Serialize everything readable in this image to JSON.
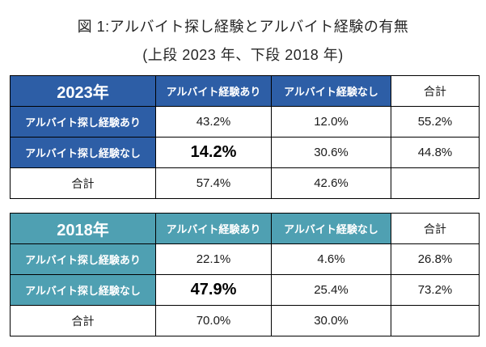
{
  "figure": {
    "title_line1": "図 1:アルバイト探し経験とアルバイト経験の有無",
    "title_line2": "(上段 2023 年、下段 2018 年)"
  },
  "colors": {
    "header_2023": "#2d5ea6",
    "header_2018": "#4fa0b2",
    "header_text": "#ffffff",
    "title_text": "#262626",
    "cell_text": "#1a1a1a",
    "border": "#000000"
  },
  "tables": [
    {
      "year_label": "2023年",
      "col_headers": [
        "アルバイト経験あり",
        "アルバイト経験なし",
        "合計"
      ],
      "rows": [
        {
          "label": "アルバイト探し経験あり",
          "values": [
            "43.2%",
            "12.0%",
            "55.2%"
          ]
        },
        {
          "label": "アルバイト探し経験なし",
          "values": [
            "14.2%",
            "30.6%",
            "44.8%"
          ]
        },
        {
          "label": "合計",
          "values": [
            "57.4%",
            "42.6%",
            ""
          ]
        }
      ]
    },
    {
      "year_label": "2018年",
      "col_headers": [
        "アルバイト経験あり",
        "アルバイト経験なし",
        "合計"
      ],
      "rows": [
        {
          "label": "アルバイト探し経験あり",
          "values": [
            "22.1%",
            "4.6%",
            "26.8%"
          ]
        },
        {
          "label": "アルバイト探し経験なし",
          "values": [
            "47.9%",
            "25.4%",
            "73.2%"
          ]
        },
        {
          "label": "合計",
          "values": [
            "70.0%",
            "30.0%",
            ""
          ]
        }
      ]
    }
  ],
  "chart_data": [
    {
      "type": "table",
      "title": "2023年",
      "columns": [
        "2023年",
        "アルバイト経験あり",
        "アルバイト経験なし",
        "合計"
      ],
      "rows": [
        [
          "アルバイト探し経験あり",
          "43.2%",
          "12.0%",
          "55.2%"
        ],
        [
          "アルバイト探し経験なし",
          "14.2%",
          "30.6%",
          "44.8%"
        ],
        [
          "合計",
          "57.4%",
          "42.6%",
          ""
        ]
      ],
      "emphasized_value": "14.2%",
      "header_color": "#2d5ea6"
    },
    {
      "type": "table",
      "title": "2018年",
      "columns": [
        "2018年",
        "アルバイト経験あり",
        "アルバイト経験なし",
        "合計"
      ],
      "rows": [
        [
          "アルバイト探し経験あり",
          "22.1%",
          "4.6%",
          "26.8%"
        ],
        [
          "アルバイト探し経験なし",
          "47.9%",
          "25.4%",
          "73.2%"
        ],
        [
          "合計",
          "70.0%",
          "30.0%",
          ""
        ]
      ],
      "emphasized_value": "47.9%",
      "header_color": "#4fa0b2"
    }
  ]
}
